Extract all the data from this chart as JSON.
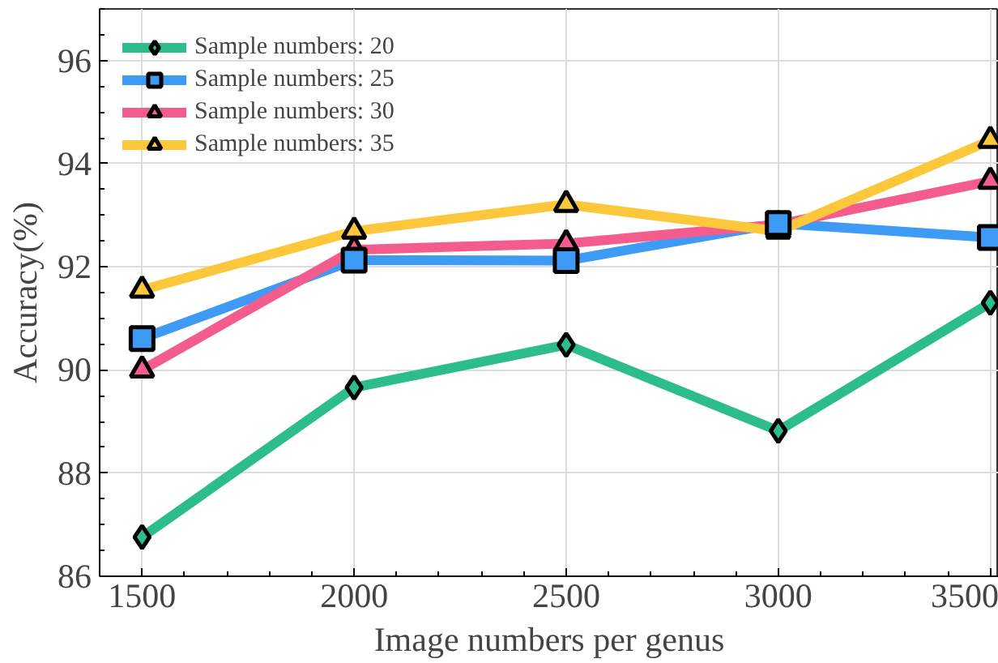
{
  "chart_data": {
    "type": "line",
    "xlabel": "Image numbers per genus",
    "ylabel": "Accuracy(%)",
    "x": [
      1500,
      2000,
      2500,
      3000,
      3500
    ],
    "xlim": [
      1400,
      3520
    ],
    "ylim": [
      86,
      97
    ],
    "xticks": [
      1500,
      2000,
      2500,
      3000,
      3500
    ],
    "yticks": [
      86,
      88,
      90,
      92,
      94,
      96
    ],
    "grid": true,
    "legend": "top left",
    "line_style": "solid",
    "series": [
      {
        "name": "Sample numbers: 20",
        "color": "#2dbd8a",
        "marker": "diamond",
        "values": [
          86.76,
          89.66,
          90.49,
          88.82,
          91.3
        ]
      },
      {
        "name": "Sample numbers: 25",
        "color": "#3d9af5",
        "marker": "square",
        "values": [
          90.61,
          92.13,
          92.12,
          92.84,
          92.57
        ]
      },
      {
        "name": "Sample numbers: 30",
        "color": "#f45c8e",
        "marker": "triangle",
        "values": [
          90.0,
          92.33,
          92.45,
          92.82,
          93.66
        ]
      },
      {
        "name": "Sample numbers: 35",
        "color": "#fcc73a",
        "marker": "triangle",
        "values": [
          91.55,
          92.69,
          93.21,
          92.69,
          94.45
        ]
      }
    ]
  }
}
